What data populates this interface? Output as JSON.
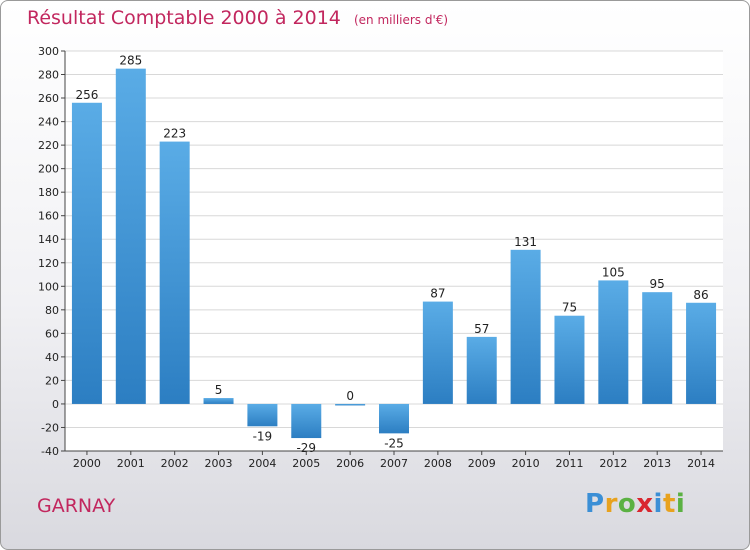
{
  "title": "Résultat Comptable 2000 à 2014",
  "subtitle": "(en milliers d'€)",
  "city": "GARNAY",
  "logo": {
    "text": "Proxiti",
    "letters": [
      {
        "ch": "P",
        "color": "#3b8fd6"
      },
      {
        "ch": "r",
        "color": "#e8a21e"
      },
      {
        "ch": "o",
        "color": "#5bb143"
      },
      {
        "ch": "x",
        "color": "#d9262f"
      },
      {
        "ch": "i",
        "color": "#3b8fd6"
      },
      {
        "ch": "t",
        "color": "#e8a21e"
      },
      {
        "ch": "i",
        "color": "#5bb143"
      }
    ]
  },
  "colors": {
    "bar_light": "#5aace6",
    "bar_dark": "#2c7ec2",
    "accent": "#c2275e",
    "grid": "#d8d8d8"
  },
  "chart_data": {
    "type": "bar",
    "categories": [
      "2000",
      "2001",
      "2002",
      "2003",
      "2004",
      "2005",
      "2006",
      "2007",
      "2008",
      "2009",
      "2010",
      "2011",
      "2012",
      "2013",
      "2014"
    ],
    "values": [
      256,
      285,
      223,
      5,
      -19,
      -29,
      0,
      -25,
      87,
      57,
      131,
      75,
      105,
      95,
      86
    ],
    "ylim": [
      -40,
      300
    ],
    "yticks": [
      -40,
      -20,
      0,
      20,
      40,
      60,
      80,
      100,
      120,
      140,
      160,
      180,
      200,
      220,
      240,
      260,
      280,
      300
    ],
    "grid": true
  }
}
